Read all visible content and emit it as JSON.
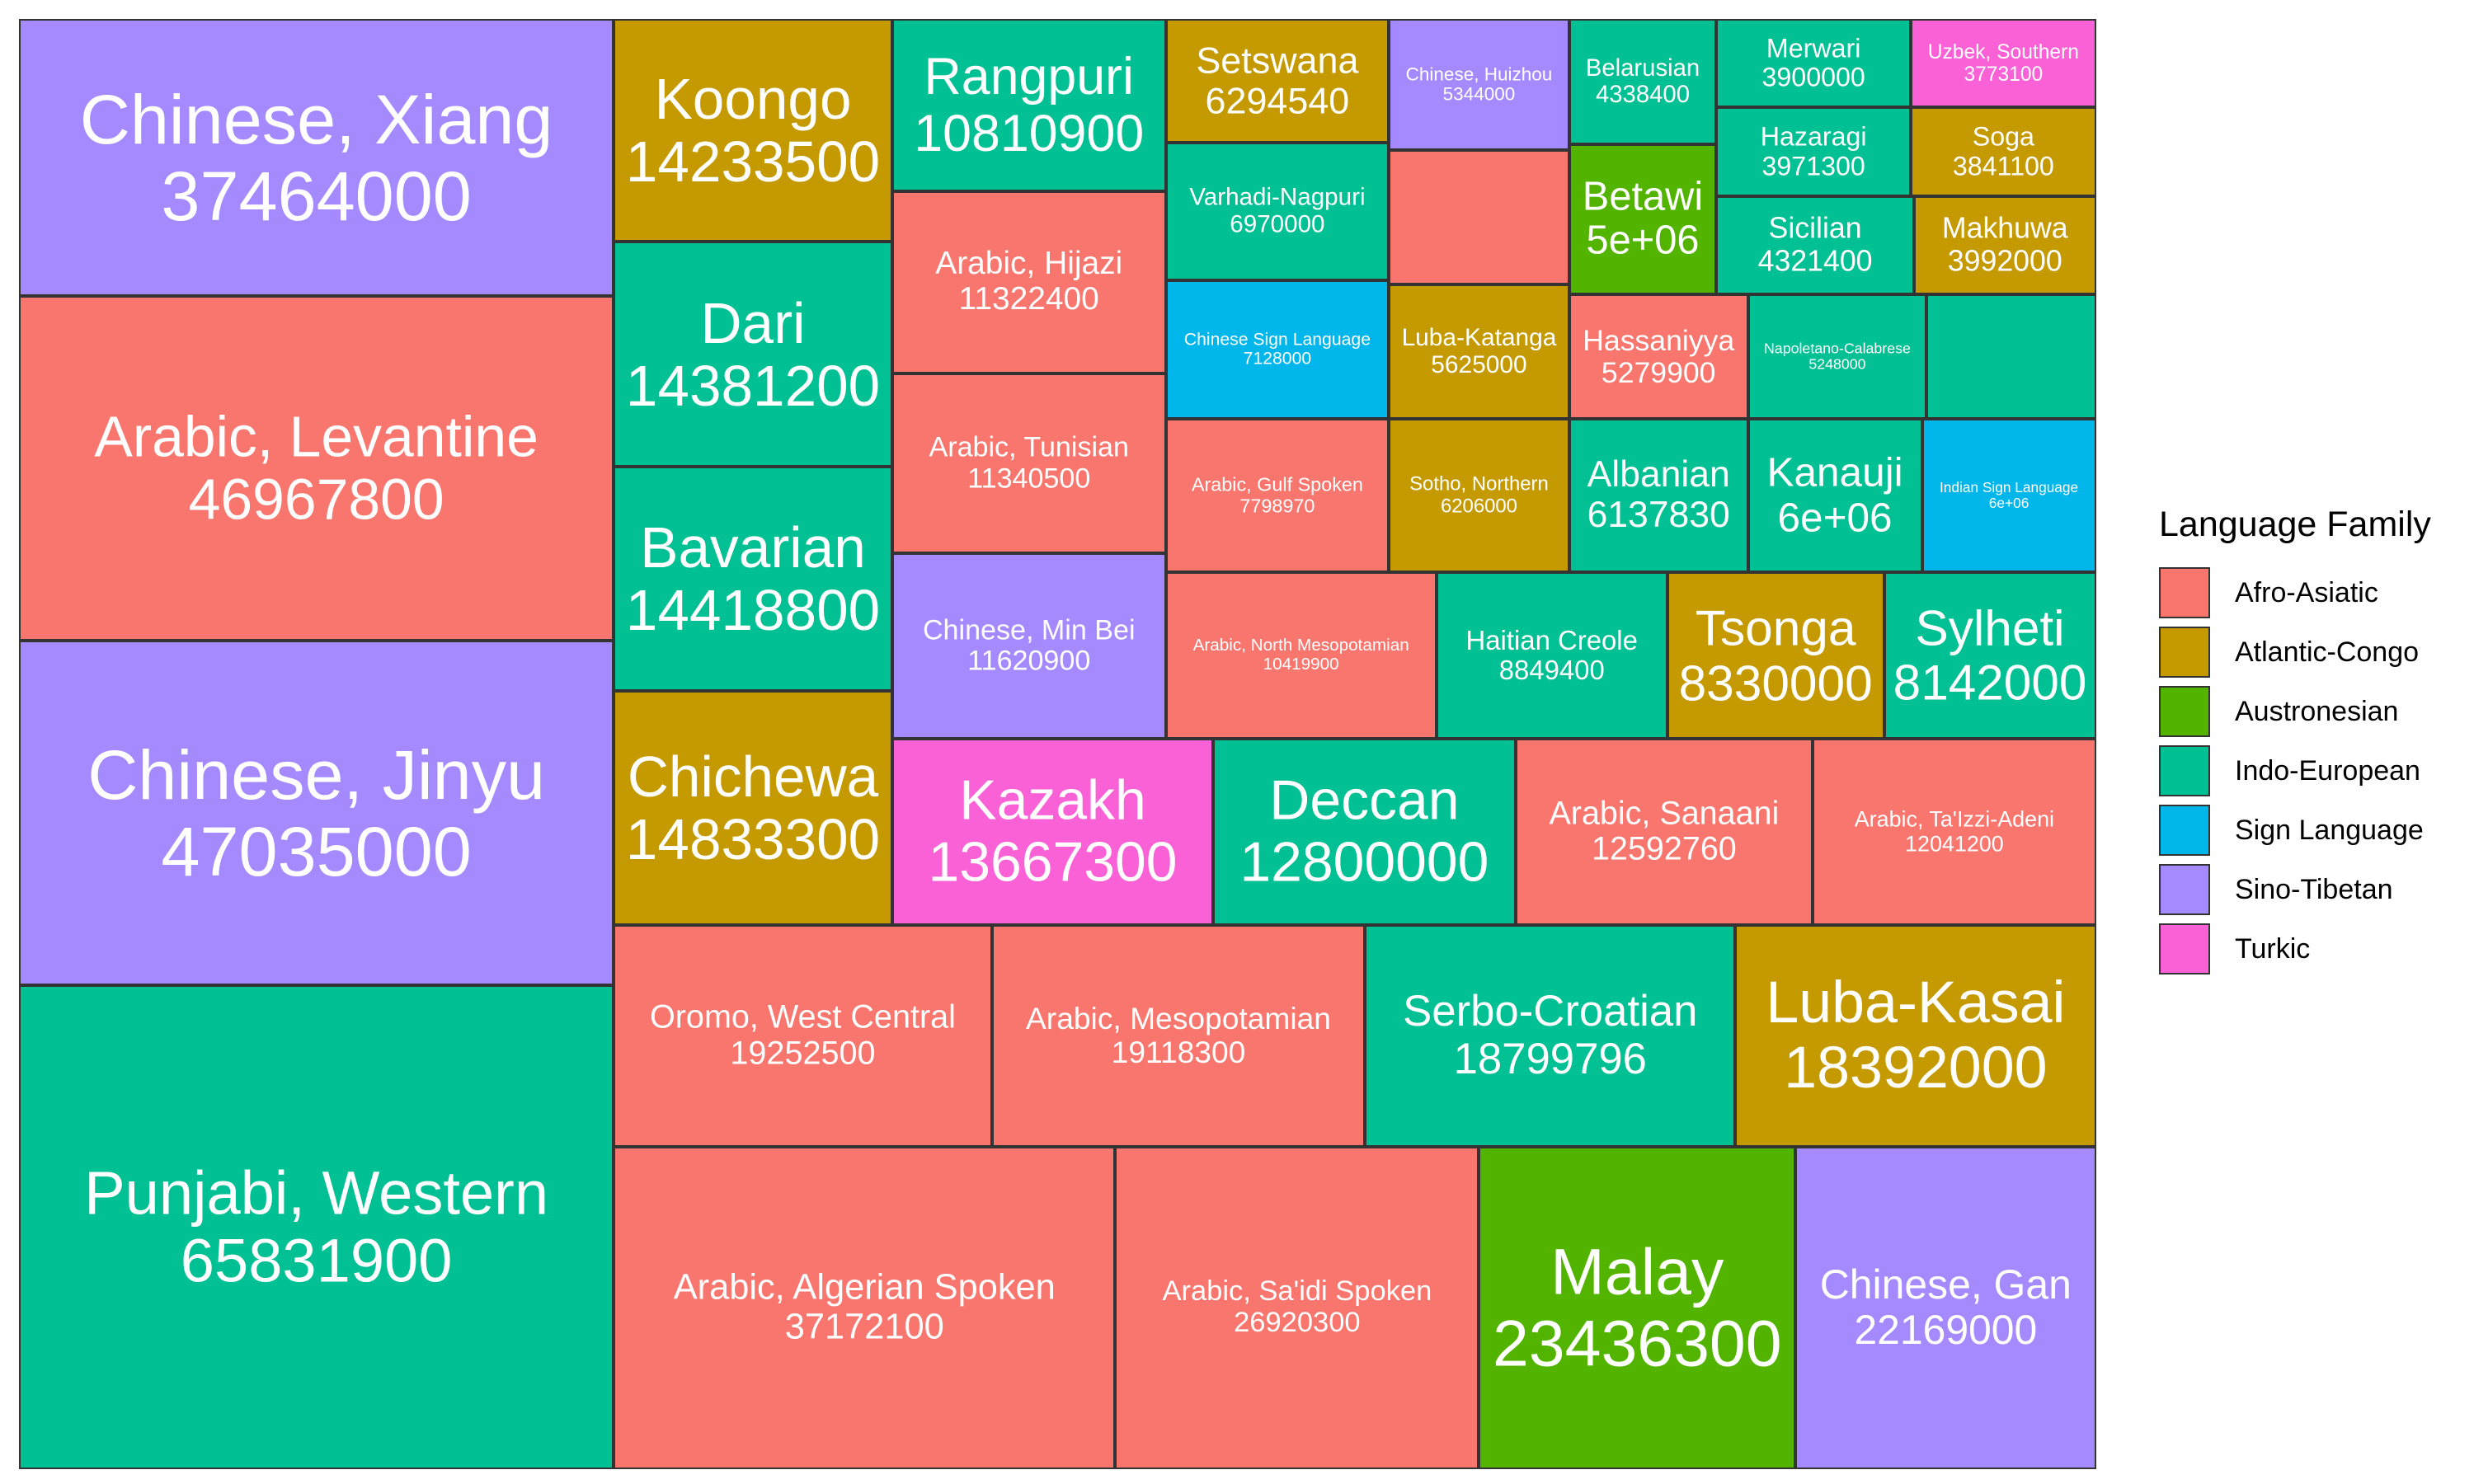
{
  "chart_data": {
    "type": "treemap",
    "legend": {
      "title": "Language Family",
      "placement": "right",
      "entries": [
        {
          "name": "Afro-Asiatic",
          "color": "#F8766D"
        },
        {
          "name": "Atlantic-Congo",
          "color": "#C49A00"
        },
        {
          "name": "Austronesian",
          "color": "#53B400"
        },
        {
          "name": "Indo-European",
          "color": "#00C094"
        },
        {
          "name": "Sign Language",
          "color": "#00B6EB"
        },
        {
          "name": "Sino-Tibetan",
          "color": "#A58AFF"
        },
        {
          "name": "Turkic",
          "color": "#FB61D7"
        }
      ]
    },
    "items": [
      {
        "label": "Punjabi, Western",
        "value": "65831900",
        "family": "Indo-European"
      },
      {
        "label": "Chinese, Jinyu",
        "value": "47035000",
        "family": "Sino-Tibetan"
      },
      {
        "label": "Arabic, Levantine",
        "value": "46967800",
        "family": "Afro-Asiatic"
      },
      {
        "label": "Chinese, Xiang",
        "value": "37464000",
        "family": "Sino-Tibetan"
      },
      {
        "label": "Arabic, Algerian Spoken",
        "value": "37172100",
        "family": "Afro-Asiatic"
      },
      {
        "label": "Arabic, Sa'idi Spoken",
        "value": "26920300",
        "family": "Afro-Asiatic"
      },
      {
        "label": "Malay",
        "value": "23436300",
        "family": "Austronesian"
      },
      {
        "label": "Chinese, Gan",
        "value": "22169000",
        "family": "Sino-Tibetan"
      },
      {
        "label": "Oromo, West Central",
        "value": "19252500",
        "family": "Afro-Asiatic"
      },
      {
        "label": "Arabic, Mesopotamian",
        "value": "19118300",
        "family": "Afro-Asiatic"
      },
      {
        "label": "Serbo-Croatian",
        "value": "18799796",
        "family": "Indo-European"
      },
      {
        "label": "Luba-Kasai",
        "value": "18392000",
        "family": "Atlantic-Congo"
      },
      {
        "label": "Chichewa",
        "value": "14833300",
        "family": "Atlantic-Congo"
      },
      {
        "label": "Bavarian",
        "value": "14418800",
        "family": "Indo-European"
      },
      {
        "label": "Dari",
        "value": "14381200",
        "family": "Indo-European"
      },
      {
        "label": "Koongo",
        "value": "14233500",
        "family": "Atlantic-Congo"
      },
      {
        "label": "Kazakh",
        "value": "13667300",
        "family": "Turkic"
      },
      {
        "label": "Deccan",
        "value": "12800000",
        "family": "Indo-European"
      },
      {
        "label": "Arabic, Sanaani",
        "value": "12592760",
        "family": "Afro-Asiatic"
      },
      {
        "label": "Arabic, Ta'Izzi-Adeni",
        "value": "12041200",
        "family": "Afro-Asiatic"
      },
      {
        "label": "Chinese, Min Bei",
        "value": "11620900",
        "family": "Sino-Tibetan"
      },
      {
        "label": "Arabic, Tunisian",
        "value": "11340500",
        "family": "Afro-Asiatic"
      },
      {
        "label": "Arabic, Hijazi",
        "value": "11322400",
        "family": "Afro-Asiatic"
      },
      {
        "label": "Rangpuri",
        "value": "10810900",
        "family": "Indo-European"
      },
      {
        "label": "Arabic, North Mesopotamian",
        "value": "10419900",
        "family": "Afro-Asiatic"
      },
      {
        "label": "Haitian Creole",
        "value": "8849400",
        "family": "Indo-European"
      },
      {
        "label": "Tsonga",
        "value": "8330000",
        "family": "Atlantic-Congo"
      },
      {
        "label": "Sylheti",
        "value": "8142000",
        "family": "Indo-European"
      },
      {
        "label": "Arabic, Gulf Spoken",
        "value": "7798970",
        "family": "Afro-Asiatic"
      },
      {
        "label": "Chinese Sign Language",
        "value": "7128000",
        "family": "Sign Language"
      },
      {
        "label": "Varhadi-Nagpuri",
        "value": "6970000",
        "family": "Indo-European"
      },
      {
        "label": "Setswana",
        "value": "6294540",
        "family": "Atlantic-Congo"
      },
      {
        "label": "Sotho, Northern",
        "value": "6206000",
        "family": "Atlantic-Congo"
      },
      {
        "label": "Albanian",
        "value": "6137830",
        "family": "Indo-European"
      },
      {
        "label": "Kanauji",
        "value": "6e+06",
        "family": "Indo-European"
      },
      {
        "label": "Indian Sign Language",
        "value": "6e+06",
        "family": "Sign Language"
      },
      {
        "label": "Luba-Katanga",
        "value": "5625000",
        "family": "Atlantic-Congo"
      },
      {
        "label": "Chinese, Huizhou",
        "value": "5344000",
        "family": "Sino-Tibetan"
      },
      {
        "label": "Hassaniyya",
        "value": "5279900",
        "family": "Afro-Asiatic"
      },
      {
        "label": "Napoletano-Calabrese",
        "value": "5248000",
        "family": "Indo-European"
      },
      {
        "label": "Betawi",
        "value": "5e+06",
        "family": "Austronesian"
      },
      {
        "label": "Belarusian",
        "value": "4338400",
        "family": "Indo-European"
      },
      {
        "label": "Sicilian",
        "value": "4321400",
        "family": "Indo-European"
      },
      {
        "label": "Makhuwa",
        "value": "3992000",
        "family": "Atlantic-Congo"
      },
      {
        "label": "Hazaragi",
        "value": "3971300",
        "family": "Indo-European"
      },
      {
        "label": "Merwari",
        "value": "3900000",
        "family": "Indo-European"
      },
      {
        "label": "Soga",
        "value": "3841100",
        "family": "Atlantic-Congo"
      },
      {
        "label": "Uzbek, Southern",
        "value": "3773100",
        "family": "Turkic"
      },
      {
        "label": "",
        "value": "",
        "family": "Afro-Asiatic"
      },
      {
        "label": "",
        "value": "",
        "family": "Indo-European"
      }
    ]
  }
}
